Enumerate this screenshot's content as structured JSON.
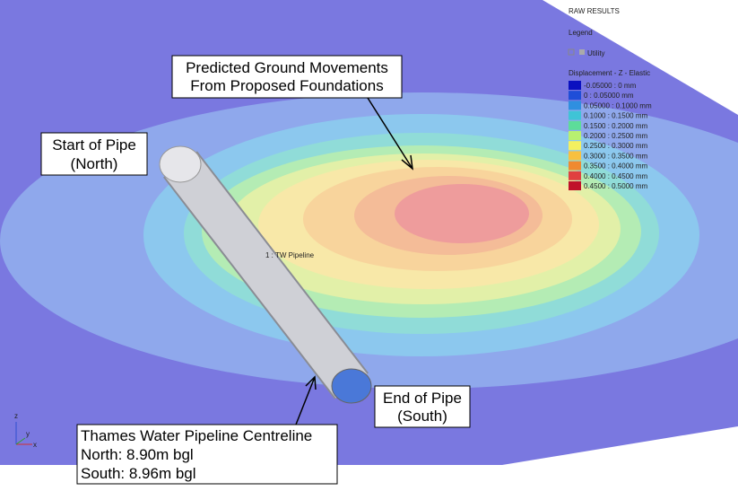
{
  "panel": {
    "title": "RAW RESULTS",
    "legend_label": "Legend",
    "utility": "Utility",
    "scale_title": "Displacement - Z - Elastic",
    "scale": [
      {
        "label": "-0.05000 : 0 mm",
        "color": "#0a10c0"
      },
      {
        "label": "0 : 0.05000 mm",
        "color": "#1f4ed8"
      },
      {
        "label": "0.05000 : 0.1000 mm",
        "color": "#2f8fe0"
      },
      {
        "label": "0.1000 : 0.1500 mm",
        "color": "#3fc4d6"
      },
      {
        "label": "0.1500 : 0.2000 mm",
        "color": "#5ddc9a"
      },
      {
        "label": "0.2000 : 0.2500 mm",
        "color": "#b8f070"
      },
      {
        "label": "0.2500 : 0.3000 mm",
        "color": "#f4f060"
      },
      {
        "label": "0.3000 : 0.3500 mm",
        "color": "#f8c040"
      },
      {
        "label": "0.3500 : 0.4000 mm",
        "color": "#f08a30"
      },
      {
        "label": "0.4000 : 0.4500 mm",
        "color": "#e04040"
      },
      {
        "label": "0.4500 : 0.5000 mm",
        "color": "#c0102a"
      }
    ]
  },
  "annotations": {
    "movements": [
      "Predicted Ground Movements",
      "From Proposed Foundations"
    ],
    "start": [
      "Start of Pipe",
      "(North)"
    ],
    "end": [
      "End of Pipe",
      "(South)"
    ],
    "centreline": [
      "Thames Water Pipeline Centreline",
      "North: 8.90m bgl",
      "South: 8.96m bgl"
    ]
  },
  "pipe_label": "1 : TW Pipeline",
  "axes": [
    "z",
    "y",
    "x"
  ]
}
